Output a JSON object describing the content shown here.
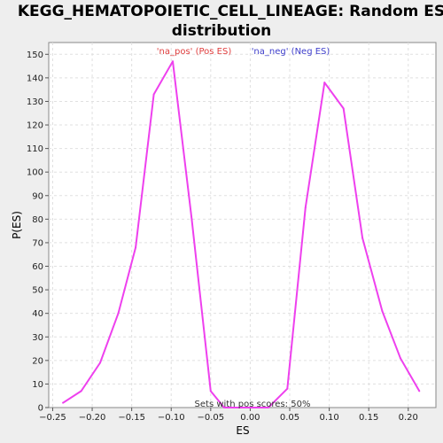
{
  "chart_data": {
    "type": "line",
    "title_line1": "KEGG_HEMATOPOIETIC_CELL_LINEAGE: Random ES",
    "title_line2": "distribution",
    "xlabel": "ES",
    "ylabel": "P(ES)",
    "xlim": [
      -0.255,
      0.235
    ],
    "ylim": [
      0,
      155
    ],
    "x_ticks": [
      -0.25,
      -0.2,
      -0.15,
      -0.1,
      -0.05,
      0.0,
      0.05,
      0.1,
      0.15,
      0.2
    ],
    "x_tick_labels": [
      "−0.25",
      "−0.20",
      "−0.15",
      "−0.10",
      "−0.05",
      "0.00",
      "0.05",
      "0.10",
      "0.15",
      "0.20"
    ],
    "y_ticks": [
      0,
      10,
      20,
      30,
      40,
      50,
      60,
      70,
      80,
      90,
      100,
      110,
      120,
      130,
      140,
      150
    ],
    "y_tick_labels": [
      "0",
      "10",
      "20",
      "30",
      "40",
      "50",
      "60",
      "70",
      "80",
      "90",
      "100",
      "110",
      "120",
      "130",
      "140",
      "150"
    ],
    "grid": true,
    "line_color": "#ee40ee",
    "series": [
      {
        "x": [
          -0.237,
          -0.214,
          -0.19,
          -0.167,
          -0.145,
          -0.122,
          -0.098,
          -0.074,
          -0.05,
          -0.033,
          0.0,
          0.023,
          0.047,
          0.07,
          0.094,
          0.118,
          0.142,
          0.167,
          0.19,
          0.214
        ],
        "y": [
          2,
          7,
          19,
          40,
          68,
          133,
          147,
          80,
          7,
          0,
          0,
          0,
          8,
          85,
          138,
          127,
          72,
          41,
          21,
          7
        ]
      }
    ],
    "legend": {
      "pos": {
        "text": "'na_pos' (Pos ES)",
        "color": "#e04040"
      },
      "neg": {
        "text": "'na_neg' (Neg ES)",
        "color": "#4040cc"
      }
    },
    "annotation": "Sets with pos scores: 50%"
  }
}
